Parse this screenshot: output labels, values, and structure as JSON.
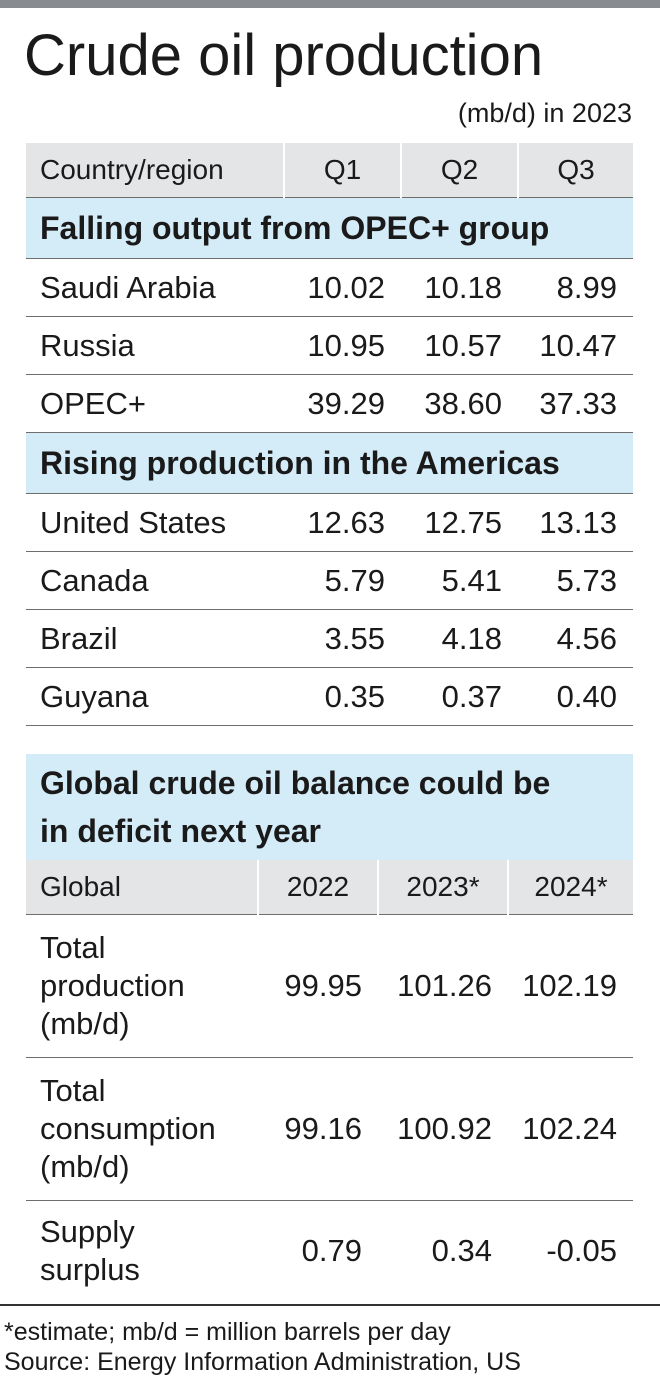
{
  "title": "Crude oil production",
  "unit": "(mb/d) in 2023",
  "table1": {
    "headers": [
      "Country/region",
      "Q1",
      "Q2",
      "Q3"
    ],
    "groups": [
      {
        "heading": "Falling output from OPEC+ group",
        "rows": [
          {
            "label": "Saudi Arabia",
            "values": [
              "10.02",
              "10.18",
              "8.99"
            ]
          },
          {
            "label": "Russia",
            "values": [
              "10.95",
              "10.57",
              "10.47"
            ]
          },
          {
            "label": "OPEC+",
            "values": [
              "39.29",
              "38.60",
              "37.33"
            ]
          }
        ]
      },
      {
        "heading": "Rising production in the Americas",
        "rows": [
          {
            "label": "United States",
            "values": [
              "12.63",
              "12.75",
              "13.13"
            ]
          },
          {
            "label": "Canada",
            "values": [
              "5.79",
              "5.41",
              "5.73"
            ]
          },
          {
            "label": "Brazil",
            "values": [
              "3.55",
              "4.18",
              "4.56"
            ]
          },
          {
            "label": "Guyana",
            "values": [
              "0.35",
              "0.37",
              "0.40"
            ]
          }
        ]
      }
    ]
  },
  "table2": {
    "heading_line1": "Global crude oil balance could be",
    "heading_line2": "in deficit next year",
    "headers": [
      "Global",
      "2022",
      "2023*",
      "2024*"
    ],
    "rows": [
      {
        "label_lines": [
          "Total",
          "production",
          "(mb/d)"
        ],
        "values": [
          "99.95",
          "101.26",
          "102.19"
        ]
      },
      {
        "label_lines": [
          "Total",
          "consumption",
          "(mb/d)"
        ],
        "values": [
          "99.16",
          "100.92",
          "102.24"
        ]
      },
      {
        "label_lines": [
          "Supply",
          "surplus"
        ],
        "values": [
          "0.79",
          "0.34",
          "-0.05"
        ]
      }
    ]
  },
  "footnote": "*estimate; mb/d = million barrels per day",
  "source": "Source: Energy Information Administration, US",
  "colors": {
    "header_bg": "#e4e5e6",
    "section_bg": "#d4ebf8",
    "top_bar": "#888c90"
  },
  "chart_data": [
    {
      "type": "table",
      "title": "Crude oil production",
      "subtitle": "(mb/d) in 2023",
      "columns": [
        "Country/region",
        "Q1",
        "Q2",
        "Q3"
      ],
      "groups": [
        {
          "name": "Falling output from OPEC+ group",
          "rows": [
            [
              "Saudi Arabia",
              10.02,
              10.18,
              8.99
            ],
            [
              "Russia",
              10.95,
              10.57,
              10.47
            ],
            [
              "OPEC+",
              39.29,
              38.6,
              37.33
            ]
          ]
        },
        {
          "name": "Rising production in the Americas",
          "rows": [
            [
              "United States",
              12.63,
              12.75,
              13.13
            ],
            [
              "Canada",
              5.79,
              5.41,
              5.73
            ],
            [
              "Brazil",
              3.55,
              4.18,
              4.56
            ],
            [
              "Guyana",
              0.35,
              0.37,
              0.4
            ]
          ]
        }
      ]
    },
    {
      "type": "table",
      "title": "Global crude oil balance could be in deficit next year",
      "columns": [
        "Global",
        "2022",
        "2023*",
        "2024*"
      ],
      "rows": [
        [
          "Total production (mb/d)",
          99.95,
          101.26,
          102.19
        ],
        [
          "Total consumption (mb/d)",
          99.16,
          100.92,
          102.24
        ],
        [
          "Supply surplus",
          0.79,
          0.34,
          -0.05
        ]
      ]
    }
  ]
}
